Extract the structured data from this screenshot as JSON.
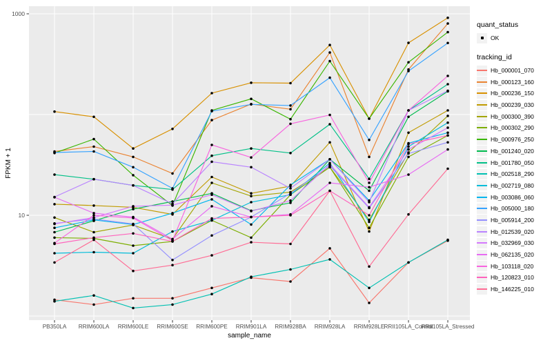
{
  "window": {
    "background": "#FFFFFF"
  },
  "chart_data": {
    "type": "line",
    "title": "",
    "xlabel": "sample_name",
    "ylabel": "FPKM + 1",
    "y_scale": "log10",
    "ylim": [
      1,
      1000
    ],
    "grid": true,
    "legend_position": "right",
    "panel_background": "#EBEBEB",
    "gridline_color": "#FFFFFF",
    "axis_text_color": "#4D4D4D",
    "axis_title_color": "#000000",
    "tick_color": "#333333",
    "point_color": "#000000",
    "y_tick_labels": [
      {
        "value": 1000,
        "label": "1000"
      },
      {
        "value": 10,
        "label": "10"
      }
    ],
    "y_gridlines": [
      1,
      10,
      100,
      1000
    ],
    "categories": [
      "PB350LA",
      "RRIM600LA",
      "RRIM600LE",
      "RRIM600SE",
      "RRIM600PE",
      "RRIM901LA",
      "RRIM928BA",
      "RRIM928LA",
      "RRIM928LE",
      "RRII105LA_Control",
      "RRII105LA_Stressed"
    ],
    "legend": {
      "quant_status": {
        "title": "quant_status",
        "items": [
          {
            "label": "OK",
            "marker": "point",
            "color": "#000000"
          }
        ]
      },
      "tracking_id": {
        "title": "tracking_id"
      }
    },
    "series": [
      {
        "name": "Hb_000001_070",
        "color": "#F8766D",
        "values": [
          1.45,
          1.3,
          1.5,
          1.5,
          1.9,
          2.4,
          2.2,
          4.7,
          1.35,
          3.4,
          5.6
        ]
      },
      {
        "name": "Hb_000123_160",
        "color": "#EA8331",
        "values": [
          43,
          48,
          38,
          26,
          88,
          127,
          113,
          413,
          38,
          280,
          800
        ]
      },
      {
        "name": "Hb_000236_150",
        "color": "#D89000",
        "values": [
          107,
          95,
          46,
          72,
          163,
          207,
          205,
          490,
          91,
          515,
          912
        ]
      },
      {
        "name": "Hb_000239_030",
        "color": "#C09B00",
        "values": [
          12.9,
          12.5,
          12,
          10.2,
          24,
          16.5,
          19.5,
          53,
          6.9,
          66,
          110
        ]
      },
      {
        "name": "Hb_000300_390",
        "color": "#A3A500",
        "values": [
          9.5,
          6.8,
          8,
          5.8,
          21,
          15.5,
          17,
          30,
          9,
          42,
          97
        ]
      },
      {
        "name": "Hb_000302_290",
        "color": "#7CAE00",
        "values": [
          6,
          5.9,
          5,
          5.5,
          8.9,
          6,
          16,
          30,
          7.5,
          38,
          62
        ]
      },
      {
        "name": "Hb_000976_250",
        "color": "#39B600",
        "values": [
          41.5,
          57,
          25,
          12.5,
          110,
          143,
          90,
          339,
          91,
          330,
          657
        ]
      },
      {
        "name": "Hb_001240_020",
        "color": "#00BB4E",
        "values": [
          6.8,
          8.8,
          11.5,
          13.7,
          16.5,
          11.1,
          13.3,
          36,
          17.5,
          95,
          170
        ]
      },
      {
        "name": "Hb_001780_050",
        "color": "#00C087",
        "values": [
          25.3,
          22.8,
          19.8,
          18,
          39,
          46,
          41.5,
          80,
          23,
          110,
          200
        ]
      },
      {
        "name": "Hb_002518_290",
        "color": "#00C0B2",
        "values": [
          1.4,
          1.6,
          1.2,
          1.3,
          1.65,
          2.45,
          2.9,
          3.65,
          1.9,
          3.4,
          5.7
        ]
      },
      {
        "name": "Hb_002719_080",
        "color": "#00BCD9",
        "values": [
          4.2,
          4.3,
          4.2,
          6.9,
          8.9,
          13.5,
          16,
          33,
          8.6,
          48,
          83
        ]
      },
      {
        "name": "Hb_003086_060",
        "color": "#00B5EE",
        "values": [
          7.5,
          9,
          8.1,
          10.5,
          14.4,
          8.1,
          20,
          36,
          14,
          52,
          66
        ]
      },
      {
        "name": "Hb_005000_180",
        "color": "#35A2FF",
        "values": [
          42,
          43,
          30,
          18.5,
          108,
          126,
          123,
          232,
          56,
          270,
          513
        ]
      },
      {
        "name": "Hb_005914_200",
        "color": "#9590FF",
        "values": [
          8.3,
          9.2,
          8.2,
          3.6,
          6.3,
          9.6,
          16.5,
          31,
          11.8,
          41,
          53
        ]
      },
      {
        "name": "Hb_012539_020",
        "color": "#B983FF",
        "values": [
          15.2,
          22.8,
          19.8,
          13,
          34,
          30,
          18.5,
          36,
          13.5,
          110,
          172
        ]
      },
      {
        "name": "Hb_032969_030",
        "color": "#D478FE",
        "values": [
          8.2,
          9.5,
          12.3,
          12.6,
          16,
          11,
          14,
          32,
          12,
          45,
          74
        ]
      },
      {
        "name": "Hb_062135_020",
        "color": "#E76BF3",
        "values": [
          15.1,
          10.5,
          9.6,
          5.8,
          12.3,
          9.6,
          10.2,
          21,
          19,
          25.3,
          45
        ]
      },
      {
        "name": "Hb_103118_020",
        "color": "#F863DF",
        "values": [
          5.3,
          10,
          9.4,
          5.6,
          50,
          37.5,
          81,
          99,
          21,
          110,
          242
        ]
      },
      {
        "name": "Hb_120823_010",
        "color": "#FF62BC",
        "values": [
          5.2,
          6,
          6.6,
          5.5,
          9.3,
          9.6,
          10,
          17.5,
          10,
          51,
          62
        ]
      },
      {
        "name": "Hb_146225_010",
        "color": "#FF6B94",
        "values": [
          3.4,
          5.7,
          2.8,
          3.2,
          4,
          5.4,
          5.2,
          17.5,
          3.1,
          10.2,
          29
        ]
      }
    ]
  }
}
